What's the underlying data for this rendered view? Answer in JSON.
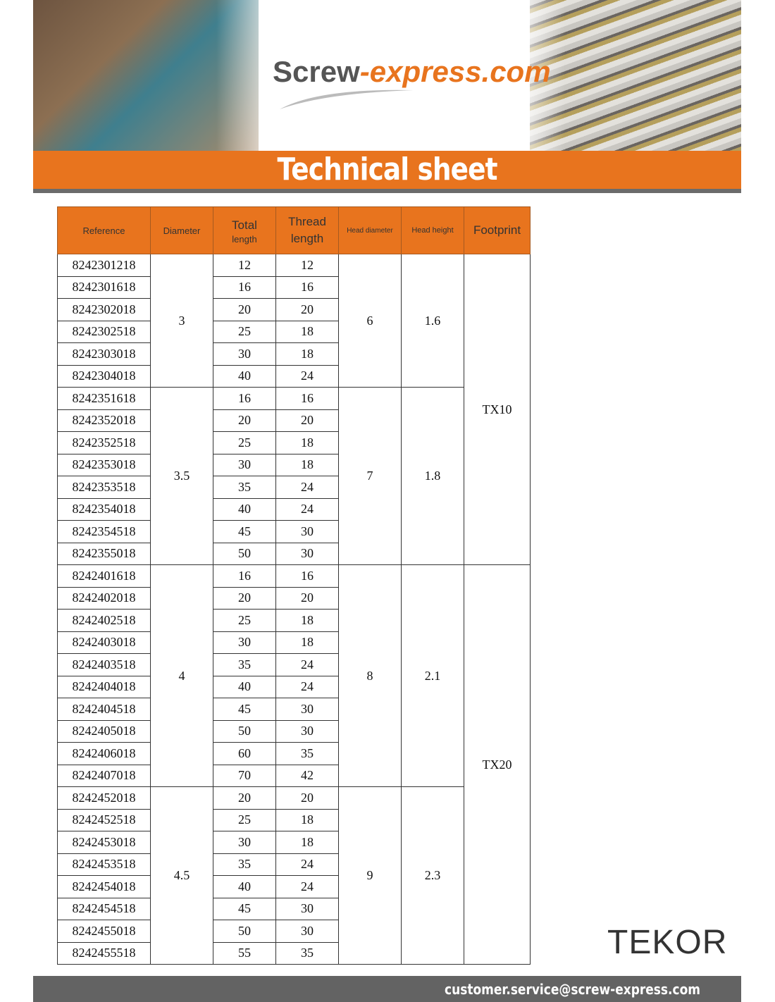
{
  "header": {
    "brand": {
      "main": "Screw",
      "accent": "-express.com"
    },
    "title": "Technical sheet"
  },
  "table": {
    "columns": [
      [
        "Reference"
      ],
      [
        "Diameter"
      ],
      [
        "Total",
        "length"
      ],
      [
        "Thread",
        "length"
      ],
      [
        "Head diameter"
      ],
      [
        "Head height"
      ],
      [
        "Footprint"
      ]
    ],
    "footprints": [
      {
        "label": "TX10",
        "groups": [
          {
            "diameter": 3,
            "head_diameter": 6,
            "head_height": 1.6,
            "rows": [
              [
                "8242301218",
                12,
                12
              ],
              [
                "8242301618",
                16,
                16
              ],
              [
                "8242302018",
                20,
                20
              ],
              [
                "8242302518",
                25,
                18
              ],
              [
                "8242303018",
                30,
                18
              ],
              [
                "8242304018",
                40,
                24
              ]
            ]
          },
          {
            "diameter": 3.5,
            "head_diameter": 7,
            "head_height": 1.8,
            "rows": [
              [
                "8242351618",
                16,
                16
              ],
              [
                "8242352018",
                20,
                20
              ],
              [
                "8242352518",
                25,
                18
              ],
              [
                "8242353018",
                30,
                18
              ],
              [
                "8242353518",
                35,
                24
              ],
              [
                "8242354018",
                40,
                24
              ],
              [
                "8242354518",
                45,
                30
              ],
              [
                "8242355018",
                50,
                30
              ]
            ]
          }
        ]
      },
      {
        "label": "TX20",
        "groups": [
          {
            "diameter": 4,
            "head_diameter": 8,
            "head_height": 2.1,
            "rows": [
              [
                "8242401618",
                16,
                16
              ],
              [
                "8242402018",
                20,
                20
              ],
              [
                "8242402518",
                25,
                18
              ],
              [
                "8242403018",
                30,
                18
              ],
              [
                "8242403518",
                35,
                24
              ],
              [
                "8242404018",
                40,
                24
              ],
              [
                "8242404518",
                45,
                30
              ],
              [
                "8242405018",
                50,
                30
              ],
              [
                "8242406018",
                60,
                35
              ],
              [
                "8242407018",
                70,
                42
              ]
            ]
          },
          {
            "diameter": 4.5,
            "head_diameter": 9,
            "head_height": 2.3,
            "rows": [
              [
                "8242452018",
                20,
                20
              ],
              [
                "8242452518",
                25,
                18
              ],
              [
                "8242453018",
                30,
                18
              ],
              [
                "8242453518",
                35,
                24
              ],
              [
                "8242454018",
                40,
                24
              ],
              [
                "8242454518",
                45,
                30
              ],
              [
                "8242455018",
                50,
                30
              ],
              [
                "8242455518",
                55,
                35
              ]
            ]
          }
        ]
      }
    ]
  },
  "footer": {
    "brand_logo": "TEKOR",
    "email": "customer.service@screw-express.com"
  }
}
